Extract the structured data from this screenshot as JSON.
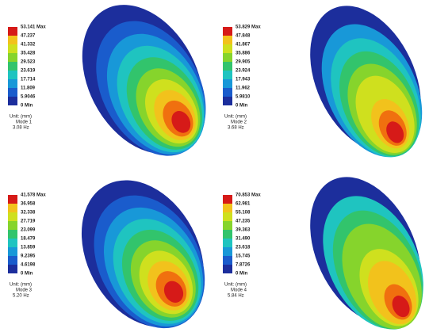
{
  "panels": [
    {
      "legend": [
        "53.141 Max",
        "47.237",
        "41.332",
        "35.428",
        "29.523",
        "23.619",
        "17.714",
        "11.809",
        "5.9046",
        "0 Min"
      ],
      "unit": "Unit: (mm)",
      "mode": "Mode 1",
      "frequency": "3.08 Hz"
    },
    {
      "legend": [
        "53.829 Max",
        "47.848",
        "41.867",
        "35.886",
        "29.905",
        "23.924",
        "17.943",
        "11.962",
        "5.9810",
        "0 Min"
      ],
      "unit": "Unit: (mm)",
      "mode": "Mode 2",
      "frequency": "3.68 Hz"
    },
    {
      "legend": [
        "41.578 Max",
        "36.958",
        "32.338",
        "27.719",
        "23.099",
        "18.479",
        "13.859",
        "9.2395",
        "4.6198",
        "0 Min"
      ],
      "unit": "Unit: (mm)",
      "mode": "Mode 3",
      "frequency": "5.20 Hz"
    },
    {
      "legend": [
        "70.853 Max",
        "62.981",
        "55.108",
        "47.235",
        "39.363",
        "31.490",
        "23.618",
        "15.745",
        "7.8726",
        "0 Min"
      ],
      "unit": "Unit: (mm)",
      "mode": "Mode 4",
      "frequency": "5.84 Hz"
    }
  ]
}
